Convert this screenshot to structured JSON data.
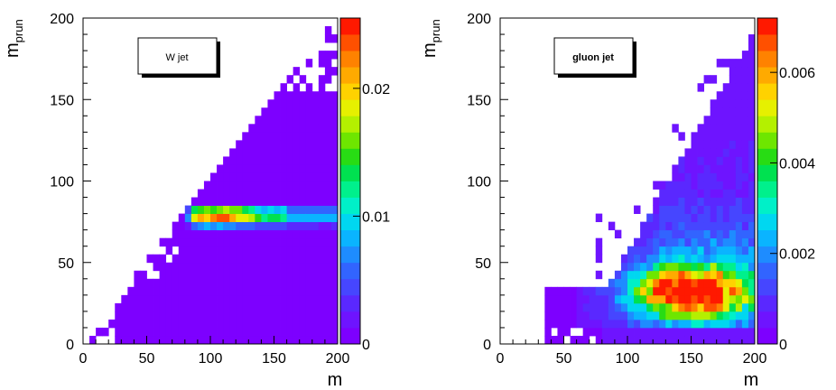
{
  "chart_data": [
    {
      "type": "heatmap",
      "panel": "left",
      "legend_label": "W jet",
      "legend_bold": false,
      "xlabel": "m",
      "ylabel_main": "m",
      "ylabel_sub": "prun",
      "xlim": [
        0,
        200
      ],
      "ylim": [
        0,
        200
      ],
      "xticks": [
        "0",
        "50",
        "100",
        "150",
        "200"
      ],
      "yticks": [
        "0",
        "50",
        "100",
        "150",
        "200"
      ],
      "zlim": [
        0,
        0.0255
      ],
      "zticks": [
        "0",
        "0.01",
        "0.02"
      ],
      "zticks_values": [
        0,
        0.01,
        0.02
      ],
      "bins": 40,
      "description": "Peak band near m_prun approximately 80 for m 80-200; diffuse low-density filling of the region m_prun < m elsewhere"
    },
    {
      "type": "heatmap",
      "panel": "right",
      "legend_label": "gluon jet",
      "legend_bold": true,
      "xlabel": "m",
      "ylabel_main": "m",
      "ylabel_sub": "prun",
      "xlim": [
        0,
        200
      ],
      "ylim": [
        0,
        200
      ],
      "xticks": [
        "0",
        "50",
        "100",
        "150",
        "200"
      ],
      "yticks": [
        "0",
        "50",
        "100",
        "150",
        "200"
      ],
      "zlim": [
        0,
        0.0072
      ],
      "zticks": [
        "0",
        "0.002",
        "0.004",
        "0.006"
      ],
      "zticks_values": [
        0,
        0.002,
        0.004,
        0.006
      ],
      "bins": 40,
      "description": "Broad distribution peaking near m approximately 150, m_prun approximately 30; density filling below the diagonal m_prun approximately m"
    }
  ]
}
